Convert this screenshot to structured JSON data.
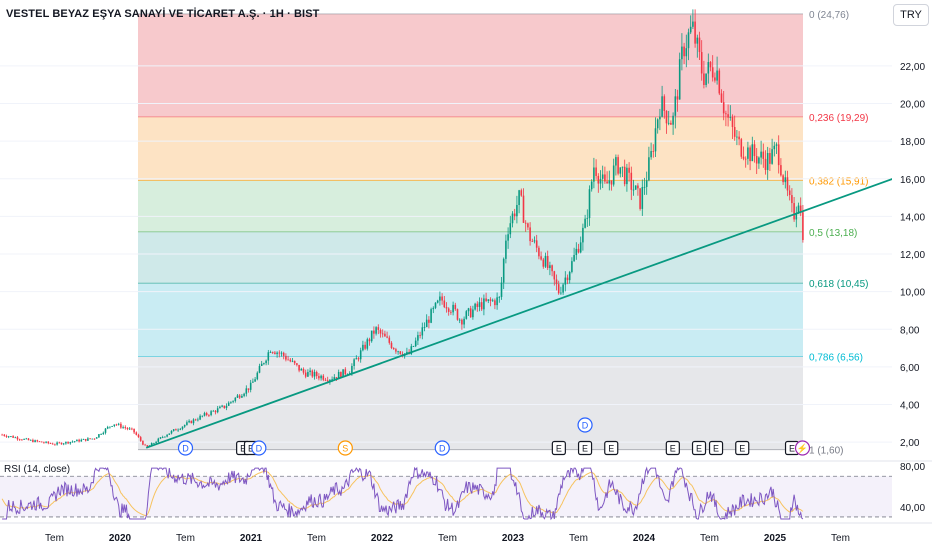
{
  "header": {
    "title": "VESTEL BEYAZ EŞYA SANAYİ VE TİCARET A.Ş. · 1H · BIST",
    "currency": "TRY"
  },
  "colors": {
    "up": "#089981",
    "down": "#f23645",
    "trendline": "#089981",
    "rsi_line": "#7e57c2",
    "rsi_ma": "#f7c35f"
  },
  "chart_data": {
    "type": "candlestick",
    "title": "VESTEL BEYAZ EŞYA SANAYİ VE TİCARET A.Ş. · 1H · BIST",
    "ylim": [
      1.0,
      25.5
    ],
    "y_ticks": [
      2,
      4,
      6,
      8,
      10,
      12,
      14,
      16,
      18,
      20,
      22
    ],
    "y_tick_labels": [
      "2,00",
      "4,00",
      "6,00",
      "8,00",
      "10,00",
      "12,00",
      "14,00",
      "16,00",
      "18,00",
      "20,00",
      "22,00"
    ],
    "x_ticks": [
      "Tem",
      "2020",
      "Tem",
      "2021",
      "Tem",
      "2022",
      "Tem",
      "2023",
      "Tem",
      "2024",
      "Tem",
      "2025",
      "Tem"
    ],
    "close_path": [
      {
        "t": 2019.1,
        "v": 2.4
      },
      {
        "t": 2019.3,
        "v": 2.1
      },
      {
        "t": 2019.5,
        "v": 1.9
      },
      {
        "t": 2019.8,
        "v": 2.2
      },
      {
        "t": 2019.95,
        "v": 3.0
      },
      {
        "t": 2020.1,
        "v": 2.6
      },
      {
        "t": 2020.2,
        "v": 1.7
      },
      {
        "t": 2020.35,
        "v": 2.4
      },
      {
        "t": 2020.6,
        "v": 3.3
      },
      {
        "t": 2020.8,
        "v": 3.9
      },
      {
        "t": 2021.0,
        "v": 5.0
      },
      {
        "t": 2021.15,
        "v": 7.0
      },
      {
        "t": 2021.25,
        "v": 6.6
      },
      {
        "t": 2021.4,
        "v": 5.7
      },
      {
        "t": 2021.6,
        "v": 5.4
      },
      {
        "t": 2021.75,
        "v": 5.8
      },
      {
        "t": 2021.95,
        "v": 8.0
      },
      {
        "t": 2022.1,
        "v": 7.0
      },
      {
        "t": 2022.2,
        "v": 6.6
      },
      {
        "t": 2022.35,
        "v": 8.5
      },
      {
        "t": 2022.45,
        "v": 9.6
      },
      {
        "t": 2022.55,
        "v": 9.0
      },
      {
        "t": 2022.6,
        "v": 8.5
      },
      {
        "t": 2022.75,
        "v": 9.3
      },
      {
        "t": 2022.9,
        "v": 9.6
      },
      {
        "t": 2022.95,
        "v": 13.2
      },
      {
        "t": 2023.05,
        "v": 15.0
      },
      {
        "t": 2023.12,
        "v": 13.0
      },
      {
        "t": 2023.25,
        "v": 11.5
      },
      {
        "t": 2023.35,
        "v": 10.0
      },
      {
        "t": 2023.45,
        "v": 11.5
      },
      {
        "t": 2023.55,
        "v": 13.5
      },
      {
        "t": 2023.62,
        "v": 16.8
      },
      {
        "t": 2023.7,
        "v": 15.5
      },
      {
        "t": 2023.8,
        "v": 16.8
      },
      {
        "t": 2023.92,
        "v": 15.5
      },
      {
        "t": 2023.97,
        "v": 14.8
      },
      {
        "t": 2024.05,
        "v": 17.0
      },
      {
        "t": 2024.12,
        "v": 20.0
      },
      {
        "t": 2024.22,
        "v": 19.0
      },
      {
        "t": 2024.3,
        "v": 23.0
      },
      {
        "t": 2024.37,
        "v": 24.0
      },
      {
        "t": 2024.45,
        "v": 21.5
      },
      {
        "t": 2024.55,
        "v": 22.0
      },
      {
        "t": 2024.62,
        "v": 19.5
      },
      {
        "t": 2024.72,
        "v": 17.8
      },
      {
        "t": 2024.85,
        "v": 17.2
      },
      {
        "t": 2024.95,
        "v": 17.0
      },
      {
        "t": 2025.02,
        "v": 17.6
      },
      {
        "t": 2025.08,
        "v": 15.5
      },
      {
        "t": 2025.14,
        "v": 14.0
      },
      {
        "t": 2025.18,
        "v": 15.0
      },
      {
        "t": 2025.22,
        "v": 12.8
      }
    ],
    "fib_levels": [
      {
        "label": "0 (24,76)",
        "value": 24.76,
        "fill": "#f7c9cc",
        "text_color": "#7f8592"
      },
      {
        "label": "0,236 (19,29)",
        "value": 19.29,
        "fill": "#fde3c4",
        "text_color": "#f23645"
      },
      {
        "label": "0,382 (15,91)",
        "value": 15.91,
        "fill": "#d7eedd",
        "text_color": "#ff9800"
      },
      {
        "label": "0,5 (13,18)",
        "value": 13.18,
        "fill": "#cfe9e9",
        "text_color": "#4caf50"
      },
      {
        "label": "0,618 (10,45)",
        "value": 10.45,
        "fill": "#c9ecf3",
        "text_color": "#089981"
      },
      {
        "label": "0,786 (6,56)",
        "value": 6.56,
        "fill": "#e6e7ea",
        "text_color": "#00bcd4"
      },
      {
        "label": "1 (1,60)",
        "value": 1.6,
        "fill": "none",
        "text_color": "#787b86"
      }
    ],
    "trendline": {
      "from": {
        "t": 2020.2,
        "v": 1.7
      },
      "to": {
        "t": 2025.9,
        "v": 16.0
      }
    },
    "markers": [
      {
        "label": "D",
        "t": 2020.5,
        "kind": "dividend"
      },
      {
        "label": "E",
        "t": 2020.94,
        "kind": "earnings"
      },
      {
        "label": "E",
        "t": 2021.0,
        "kind": "earnings"
      },
      {
        "label": "D",
        "t": 2021.06,
        "kind": "dividend"
      },
      {
        "label": "S",
        "t": 2021.72,
        "kind": "split"
      },
      {
        "label": "D",
        "t": 2022.46,
        "kind": "dividend"
      },
      {
        "label": "D",
        "t": 2023.55,
        "kind": "dividend",
        "row": "upper"
      },
      {
        "label": "E",
        "t": 2023.35,
        "kind": "earnings"
      },
      {
        "label": "E",
        "t": 2023.55,
        "kind": "earnings"
      },
      {
        "label": "E",
        "t": 2023.75,
        "kind": "earnings"
      },
      {
        "label": "E",
        "t": 2024.22,
        "kind": "earnings"
      },
      {
        "label": "E",
        "t": 2024.42,
        "kind": "earnings"
      },
      {
        "label": "E",
        "t": 2024.55,
        "kind": "earnings"
      },
      {
        "label": "E",
        "t": 2024.75,
        "kind": "earnings"
      },
      {
        "label": "E",
        "t": 2025.13,
        "kind": "earnings"
      },
      {
        "label": "⚡",
        "t": 2025.21,
        "kind": "flash"
      }
    ]
  },
  "rsi": {
    "label": "RSI (14, close)",
    "ylim": [
      25,
      85
    ],
    "y_ticks": [
      80,
      40
    ],
    "y_tick_labels": [
      "80,00",
      "40,00"
    ],
    "bands": [
      70,
      30
    ]
  }
}
